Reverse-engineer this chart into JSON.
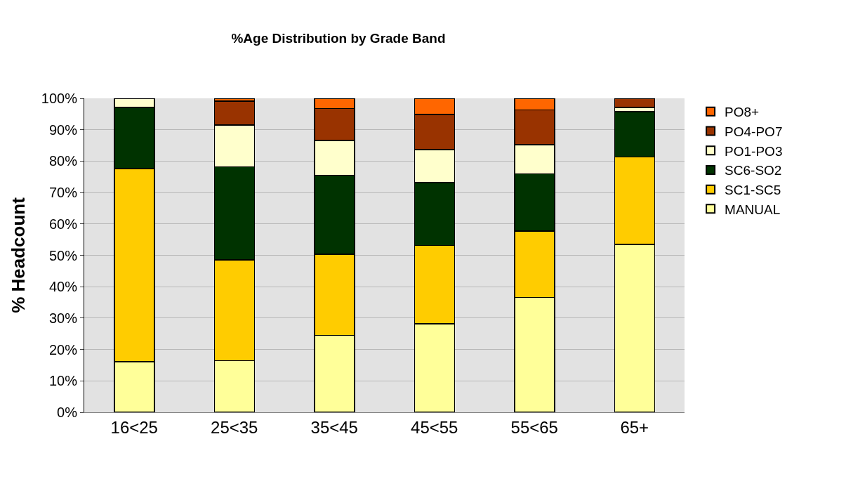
{
  "chart_data": {
    "type": "bar",
    "title": "%Age Distribution by Grade Band",
    "ylabel": "% Headcount",
    "categories": [
      "16<25",
      "25<35",
      "35<45",
      "45<55",
      "55<65",
      "65+"
    ],
    "stacked": true,
    "series": [
      {
        "name": "MANUAL",
        "color": "#ffff99",
        "values": [
          16.1,
          16.5,
          24.5,
          28.2,
          36.6,
          53.5
        ]
      },
      {
        "name": "SC1-SC5",
        "color": "#ffcc00",
        "values": [
          61.5,
          32.0,
          25.8,
          24.9,
          21.1,
          27.8
        ]
      },
      {
        "name": "SC6-SO2",
        "color": "#003300",
        "values": [
          19.5,
          29.7,
          25.2,
          20.0,
          18.2,
          14.5
        ]
      },
      {
        "name": "PO1-PO3",
        "color": "#ffffcc",
        "values": [
          2.9,
          13.3,
          11.1,
          10.6,
          9.3,
          1.3
        ]
      },
      {
        "name": "PO4-PO7",
        "color": "#993300",
        "values": [
          0,
          7.6,
          10.2,
          11.1,
          11.1,
          2.9
        ]
      },
      {
        "name": "PO8+",
        "color": "#ff6600",
        "values": [
          0,
          0.9,
          3.2,
          5.2,
          3.7,
          0
        ]
      }
    ],
    "ylim": [
      0,
      100
    ],
    "yticks": [
      {
        "value": 0,
        "label": "0%"
      },
      {
        "value": 10,
        "label": "10%"
      },
      {
        "value": 20,
        "label": "20%"
      },
      {
        "value": 30,
        "label": "30%"
      },
      {
        "value": 40,
        "label": "40%"
      },
      {
        "value": 50,
        "label": "50%"
      },
      {
        "value": 60,
        "label": "60%"
      },
      {
        "value": 70,
        "label": "70%"
      },
      {
        "value": 80,
        "label": "80%"
      },
      {
        "value": 90,
        "label": "90%"
      },
      {
        "value": 100,
        "label": "100%"
      }
    ],
    "grid": "y",
    "legend": "right"
  }
}
